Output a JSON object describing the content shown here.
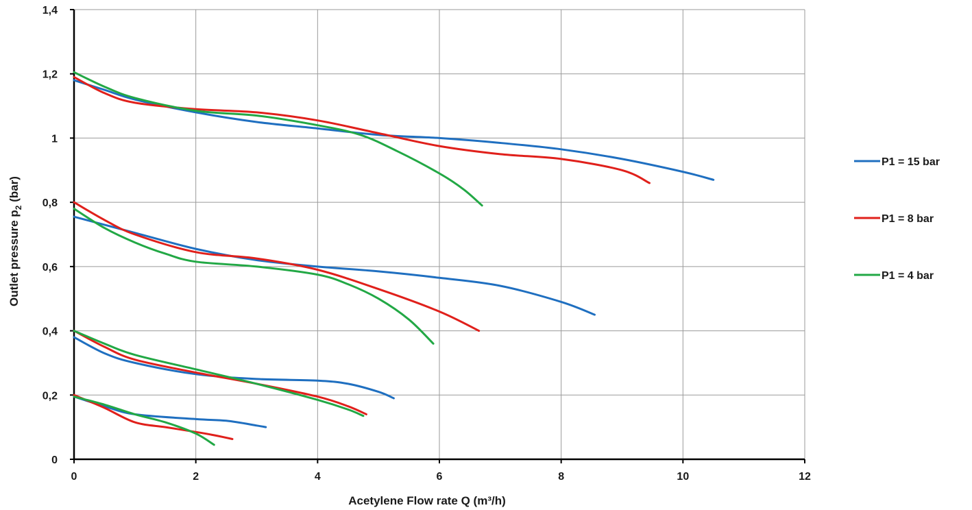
{
  "chart_data": {
    "type": "line",
    "xlabel": "Acetylene Flow rate Q (m³/h)",
    "ylabel_main": "Outlet pressure p",
    "ylabel_sub": "2",
    "ylabel_unit": " (bar)",
    "xlim": [
      0,
      12
    ],
    "ylim": [
      0,
      1.4
    ],
    "x_ticks": [
      0,
      2,
      4,
      6,
      8,
      10,
      12
    ],
    "y_ticks": [
      0,
      0.2,
      0.4,
      0.6,
      0.8,
      1,
      1.2,
      1.4
    ],
    "x_tick_labels": [
      "0",
      "2",
      "4",
      "6",
      "8",
      "10",
      "12"
    ],
    "y_tick_labels": [
      "0",
      "0,2",
      "0,4",
      "0,6",
      "0,8",
      "1",
      "1,2",
      "1,4"
    ],
    "grid": true,
    "legend_position": "right",
    "series": [
      {
        "name": "P1 = 15 bar",
        "color": "#1f6fc0",
        "curves": [
          [
            [
              0,
              1.18
            ],
            [
              0.5,
              1.15
            ],
            [
              1,
              1.12
            ],
            [
              2,
              1.08
            ],
            [
              3,
              1.05
            ],
            [
              4,
              1.03
            ],
            [
              5,
              1.01
            ],
            [
              6,
              1.0
            ],
            [
              7,
              0.985
            ],
            [
              8,
              0.965
            ],
            [
              9,
              0.935
            ],
            [
              10,
              0.895
            ],
            [
              10.5,
              0.87
            ]
          ],
          [
            [
              0,
              0.755
            ],
            [
              0.5,
              0.73
            ],
            [
              1,
              0.705
            ],
            [
              2,
              0.655
            ],
            [
              3,
              0.62
            ],
            [
              4,
              0.6
            ],
            [
              5,
              0.585
            ],
            [
              6,
              0.565
            ],
            [
              7,
              0.54
            ],
            [
              8,
              0.49
            ],
            [
              8.55,
              0.45
            ]
          ],
          [
            [
              0,
              0.38
            ],
            [
              0.5,
              0.33
            ],
            [
              1,
              0.3
            ],
            [
              2,
              0.265
            ],
            [
              3,
              0.25
            ],
            [
              4,
              0.245
            ],
            [
              4.5,
              0.235
            ],
            [
              5,
              0.21
            ],
            [
              5.25,
              0.19
            ]
          ],
          [
            [
              0,
              0.195
            ],
            [
              0.5,
              0.165
            ],
            [
              1,
              0.14
            ],
            [
              2,
              0.125
            ],
            [
              2.5,
              0.12
            ],
            [
              3,
              0.105
            ],
            [
              3.15,
              0.1
            ]
          ]
        ]
      },
      {
        "name": "P1 = 8 bar",
        "color": "#e0201b",
        "curves": [
          [
            [
              0,
              1.19
            ],
            [
              0.5,
              1.14
            ],
            [
              1,
              1.11
            ],
            [
              2,
              1.09
            ],
            [
              3,
              1.08
            ],
            [
              4,
              1.055
            ],
            [
              5,
              1.015
            ],
            [
              6,
              0.975
            ],
            [
              7,
              0.95
            ],
            [
              8,
              0.935
            ],
            [
              9,
              0.9
            ],
            [
              9.45,
              0.86
            ]
          ],
          [
            [
              0,
              0.8
            ],
            [
              0.5,
              0.745
            ],
            [
              1,
              0.7
            ],
            [
              2,
              0.645
            ],
            [
              3,
              0.625
            ],
            [
              4,
              0.59
            ],
            [
              5,
              0.53
            ],
            [
              6,
              0.46
            ],
            [
              6.65,
              0.4
            ]
          ],
          [
            [
              0,
              0.4
            ],
            [
              0.5,
              0.35
            ],
            [
              1,
              0.31
            ],
            [
              2,
              0.27
            ],
            [
              3,
              0.235
            ],
            [
              4,
              0.195
            ],
            [
              4.5,
              0.165
            ],
            [
              4.8,
              0.14
            ]
          ],
          [
            [
              0,
              0.2
            ],
            [
              0.5,
              0.16
            ],
            [
              1,
              0.115
            ],
            [
              1.5,
              0.1
            ],
            [
              2,
              0.085
            ],
            [
              2.3,
              0.075
            ],
            [
              2.6,
              0.063
            ]
          ]
        ]
      },
      {
        "name": "P1 = 4 bar",
        "color": "#22a845",
        "curves": [
          [
            [
              0,
              1.205
            ],
            [
              0.5,
              1.16
            ],
            [
              1,
              1.125
            ],
            [
              2,
              1.085
            ],
            [
              3,
              1.07
            ],
            [
              4,
              1.04
            ],
            [
              4.7,
              1.01
            ],
            [
              5.3,
              0.96
            ],
            [
              6,
              0.89
            ],
            [
              6.4,
              0.84
            ],
            [
              6.7,
              0.79
            ]
          ],
          [
            [
              0,
              0.78
            ],
            [
              0.5,
              0.72
            ],
            [
              1,
              0.675
            ],
            [
              1.5,
              0.64
            ],
            [
              2,
              0.615
            ],
            [
              3,
              0.6
            ],
            [
              4,
              0.575
            ],
            [
              4.5,
              0.545
            ],
            [
              5,
              0.5
            ],
            [
              5.5,
              0.435
            ],
            [
              5.9,
              0.36
            ]
          ],
          [
            [
              0,
              0.4
            ],
            [
              0.5,
              0.36
            ],
            [
              1,
              0.325
            ],
            [
              2,
              0.28
            ],
            [
              3,
              0.235
            ],
            [
              4,
              0.185
            ],
            [
              4.5,
              0.155
            ],
            [
              4.75,
              0.135
            ]
          ],
          [
            [
              0,
              0.195
            ],
            [
              0.5,
              0.17
            ],
            [
              1,
              0.14
            ],
            [
              1.5,
              0.115
            ],
            [
              2,
              0.08
            ],
            [
              2.3,
              0.045
            ]
          ]
        ]
      }
    ]
  }
}
